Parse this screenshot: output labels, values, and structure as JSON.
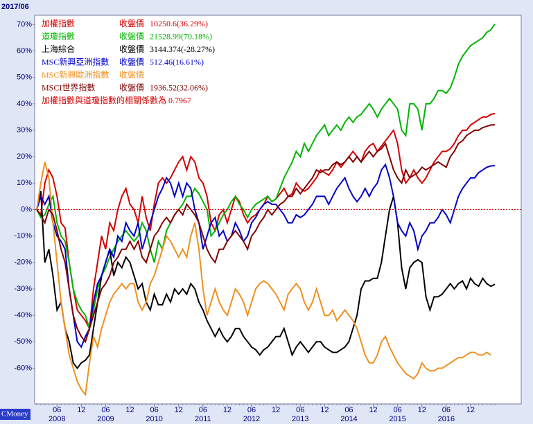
{
  "chart_data": {
    "type": "line",
    "date_label": "2017/06",
    "source": "CMoney",
    "close_label": "收盤價",
    "note": "加權指數與道瓊指數的相關係數為 0.7967",
    "categories": [
      null,
      null,
      null,
      null,
      null,
      "06",
      null,
      null,
      null,
      null,
      null,
      "12",
      null,
      null,
      null,
      null,
      null,
      "06",
      null,
      null,
      null,
      null,
      null,
      "12",
      null,
      null,
      null,
      null,
      null,
      "06",
      null,
      null,
      null,
      null,
      null,
      "12",
      null,
      null,
      null,
      null,
      null,
      "06",
      null,
      null,
      null,
      null,
      null,
      "12",
      null,
      null,
      null,
      null,
      null,
      "06",
      null,
      null,
      null,
      null,
      null,
      "12",
      null,
      null,
      null,
      null,
      null,
      "06",
      null,
      null,
      null,
      null,
      null,
      "12",
      null,
      null,
      null,
      null,
      null,
      "06",
      null,
      null,
      null,
      null,
      null,
      "12",
      null,
      null,
      null,
      null,
      null,
      "06",
      null,
      null,
      null,
      null,
      null,
      "12",
      null,
      null,
      null,
      null,
      null,
      "06",
      null,
      null,
      null,
      null,
      null,
      "12",
      null,
      null,
      null,
      null,
      null,
      null
    ],
    "year_labels": [
      "2008",
      "2009",
      "2010",
      "2011",
      "2012",
      "2013",
      "2014",
      "2015",
      "2016"
    ],
    "ylim": [
      -73.5,
      73.5
    ],
    "yticks": [
      {
        "value": 70,
        "label": "70%"
      },
      {
        "value": 60,
        "label": "60%"
      },
      {
        "value": 50,
        "label": "50%"
      },
      {
        "value": 40,
        "label": "40%"
      },
      {
        "value": 30,
        "label": "30%"
      },
      {
        "value": 20,
        "label": "20%"
      },
      {
        "value": 10,
        "label": "10%"
      },
      {
        "value": 0,
        "label": "0%"
      },
      {
        "value": -10,
        "label": "-10%"
      },
      {
        "value": -20,
        "label": "-20%"
      },
      {
        "value": -30,
        "label": "-30%"
      },
      {
        "value": -40,
        "label": "-40%"
      },
      {
        "value": -50,
        "label": "-50%"
      },
      {
        "value": -60,
        "label": "-60%"
      }
    ],
    "series": [
      {
        "name": "加權指數",
        "color": "#d40000",
        "close": "10250.6(36.29%)",
        "values": [
          0,
          -2,
          10,
          15,
          12,
          5,
          -5,
          -7,
          -20,
          -30,
          -38,
          -40,
          -42,
          -45,
          -30,
          -20,
          -10,
          -15,
          -5,
          -8,
          0,
          5,
          8,
          2,
          0,
          -5,
          5,
          -3,
          -8,
          2,
          10,
          12,
          10,
          12,
          15,
          18,
          20,
          15,
          20,
          18,
          12,
          10,
          5,
          -5,
          -8,
          -2,
          0,
          -5,
          0,
          5,
          3,
          -2,
          -5,
          -3,
          -2,
          0,
          2,
          5,
          3,
          4,
          6,
          8,
          5,
          6,
          10,
          8,
          7,
          8,
          10,
          12,
          15,
          14,
          13,
          15,
          18,
          16,
          18,
          20,
          22,
          20,
          18,
          22,
          24,
          25,
          22,
          24,
          26,
          28,
          30,
          25,
          15,
          10,
          12,
          15,
          12,
          10,
          12,
          15,
          18,
          20,
          22,
          22,
          23,
          25,
          28,
          30,
          30,
          32,
          33,
          34,
          35,
          35,
          36,
          36.29
        ]
      },
      {
        "name": "道瓊指數",
        "color": "#00b400",
        "close": "21528.99(70.18%)",
        "values": [
          0,
          -3,
          -2,
          2,
          5,
          -5,
          -10,
          -12,
          -20,
          -30,
          -35,
          -38,
          -40,
          -45,
          -38,
          -30,
          -25,
          -22,
          -18,
          -15,
          -12,
          -10,
          -8,
          -10,
          -12,
          -10,
          -5,
          -8,
          -15,
          -20,
          -12,
          -15,
          -8,
          -5,
          -2,
          0,
          2,
          5,
          5,
          8,
          6,
          3,
          0,
          -10,
          -8,
          -5,
          -2,
          0,
          3,
          5,
          2,
          0,
          -3,
          0,
          2,
          3,
          4,
          5,
          3,
          4,
          8,
          12,
          15,
          18,
          22,
          20,
          25,
          22,
          25,
          28,
          30,
          32,
          28,
          30,
          32,
          30,
          33,
          35,
          33,
          35,
          36,
          38,
          40,
          38,
          35,
          38,
          40,
          42,
          40,
          38,
          30,
          28,
          40,
          40,
          38,
          30,
          40,
          40,
          42,
          45,
          45,
          44,
          46,
          50,
          55,
          58,
          60,
          62,
          63,
          64,
          65,
          67,
          68,
          70.18
        ]
      },
      {
        "name": "上海綜合",
        "color": "#000000",
        "close": "3144.374(-28.27%)",
        "values": [
          0,
          7,
          -20,
          -15,
          -25,
          -38,
          -35,
          -45,
          -50,
          -58,
          -60,
          -58,
          -57,
          -55,
          -45,
          -35,
          -25,
          -20,
          -15,
          -25,
          -20,
          -22,
          -18,
          -20,
          -25,
          -30,
          -28,
          -35,
          -38,
          -32,
          -36,
          -36,
          -32,
          -35,
          -30,
          -32,
          -30,
          -32,
          -28,
          -30,
          -35,
          -38,
          -42,
          -45,
          -48,
          -45,
          -48,
          -50,
          -48,
          -45,
          -45,
          -48,
          -50,
          -52,
          -53,
          -55,
          -53,
          -52,
          -50,
          -48,
          -48,
          -45,
          -50,
          -55,
          -52,
          -50,
          -52,
          -54,
          -52,
          -50,
          -50,
          -52,
          -53,
          -54,
          -54,
          -53,
          -52,
          -50,
          -45,
          -40,
          -30,
          -27,
          -27,
          -26,
          -26,
          -20,
          -10,
          0,
          5,
          -5,
          -22,
          -30,
          -22,
          -20,
          -19,
          -20,
          -33,
          -38,
          -33,
          -33,
          -32,
          -30,
          -28,
          -30,
          -28,
          -27,
          -30,
          -26,
          -28,
          -29,
          -26,
          -28,
          -29,
          -28.27
        ]
      },
      {
        "name": "MSC新興亞洲指數",
        "color": "#0000c8",
        "close": "512.46(16.61%)",
        "values": [
          0,
          5,
          2,
          5,
          -5,
          -10,
          -12,
          -15,
          -30,
          -40,
          -50,
          -52,
          -48,
          -45,
          -35,
          -28,
          -25,
          -20,
          -15,
          -18,
          -10,
          -12,
          -5,
          -8,
          -10,
          -5,
          -15,
          -10,
          -5,
          0,
          5,
          8,
          12,
          10,
          5,
          10,
          5,
          10,
          8,
          0,
          -5,
          -15,
          -10,
          -5,
          -3,
          -10,
          -8,
          -12,
          -10,
          -5,
          -8,
          -12,
          -10,
          -5,
          -3,
          0,
          2,
          3,
          2,
          2,
          0,
          -2,
          -5,
          -5,
          -2,
          -3,
          -2,
          0,
          2,
          5,
          5,
          5,
          2,
          5,
          8,
          10,
          12,
          8,
          5,
          3,
          5,
          8,
          5,
          8,
          10,
          15,
          17,
          12,
          5,
          -5,
          -8,
          -10,
          -5,
          -8,
          -15,
          -10,
          -8,
          -5,
          -5,
          -3,
          0,
          -2,
          -5,
          0,
          5,
          8,
          10,
          12,
          12,
          14,
          15,
          16,
          16.5,
          16.61
        ]
      },
      {
        "name": "MSC新興歐洲指數",
        "color": "#f0901e",
        "values": [
          0,
          10,
          18,
          12,
          -5,
          -20,
          -35,
          -45,
          -55,
          -60,
          -65,
          -68,
          -70,
          -58,
          -48,
          -52,
          -45,
          -40,
          -35,
          -32,
          -30,
          -28,
          -30,
          -28,
          -28,
          -35,
          -38,
          -35,
          -28,
          -25,
          -20,
          -15,
          -10,
          -12,
          -15,
          -18,
          -15,
          -18,
          -10,
          -5,
          -15,
          -30,
          -40,
          -35,
          -30,
          -35,
          -38,
          -40,
          -35,
          -30,
          -32,
          -35,
          -40,
          -35,
          -30,
          -28,
          -27,
          -28,
          -30,
          -32,
          -35,
          -38,
          -32,
          -30,
          -28,
          -30,
          -35,
          -38,
          -35,
          -30,
          -35,
          -40,
          -40,
          -38,
          -42,
          -40,
          -38,
          -40,
          -42,
          -45,
          -50,
          -55,
          -58,
          -58,
          -55,
          -50,
          -48,
          -52,
          -55,
          -58,
          -60,
          -62,
          -63,
          -64,
          -62,
          -58,
          -60,
          -61,
          -61,
          -60,
          -60,
          -59,
          -58,
          -57,
          -56,
          -56,
          -55,
          -54,
          -54,
          -55,
          -55,
          -54,
          -55,
          null
        ]
      },
      {
        "name": "MSCI世界指數",
        "color": "#800000",
        "close": "1936.52(32.06%)",
        "values": [
          0,
          -2,
          -5,
          0,
          -2,
          -8,
          -15,
          -20,
          -30,
          -40,
          -45,
          -48,
          -50,
          -45,
          -40,
          -35,
          -30,
          -28,
          -25,
          -20,
          -18,
          -15,
          -15,
          -12,
          -15,
          -12,
          -18,
          -20,
          -15,
          -10,
          -8,
          -5,
          -3,
          -5,
          -2,
          0,
          -2,
          2,
          0,
          -2,
          -5,
          -10,
          -15,
          -18,
          -20,
          -15,
          -15,
          -12,
          -10,
          -8,
          -10,
          -12,
          -15,
          -10,
          -8,
          -5,
          -3,
          0,
          -2,
          0,
          2,
          3,
          5,
          5,
          8,
          6,
          8,
          10,
          12,
          15,
          14,
          15,
          15,
          17,
          18,
          17,
          18,
          20,
          18,
          20,
          18,
          20,
          22,
          20,
          22,
          23,
          25,
          20,
          15,
          12,
          10,
          15,
          12,
          13,
          14,
          16,
          15,
          16,
          17,
          18,
          17,
          16,
          20,
          22,
          25,
          26,
          28,
          29,
          30,
          30,
          31,
          31.5,
          32,
          32.06
        ]
      }
    ]
  }
}
